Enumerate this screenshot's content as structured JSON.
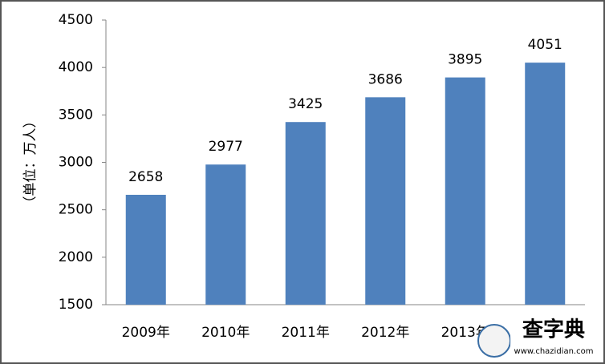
{
  "chart_data": {
    "type": "bar",
    "y_label": "（单位：万人）",
    "categories": [
      "2009年",
      "2010年",
      "2011年",
      "2012年",
      "2013年",
      null
    ],
    "values": [
      2658,
      2977,
      3425,
      3686,
      3895,
      4051
    ],
    "color": "#4f81bd",
    "ylim": [
      1500,
      4500
    ],
    "yticks": [
      1500,
      2000,
      2500,
      3000,
      3500,
      4000,
      4500
    ],
    "grid": false,
    "watermark": {
      "title": "查字典",
      "url": "www.chazidian.com"
    }
  }
}
